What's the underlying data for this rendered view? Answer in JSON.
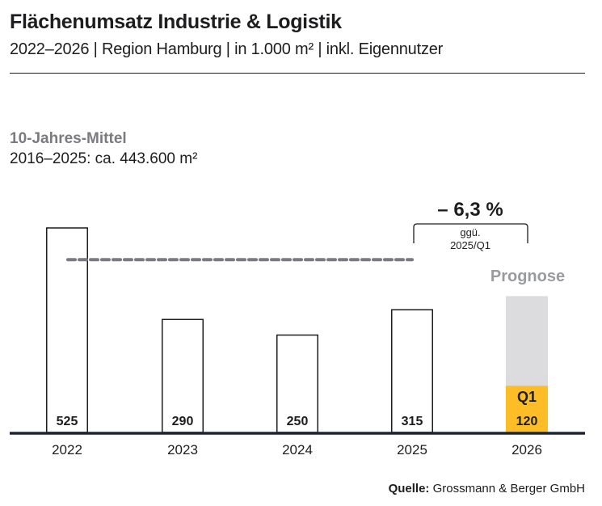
{
  "header": {
    "title": "Flächenumsatz Industrie & Logistik",
    "subtitle": "2022–2026 | Region Hamburg | in 1.000 m² | inkl. Eigennutzer"
  },
  "average": {
    "title": "10-Jahres-Mittel",
    "value_text": "2016–2025: ca. 443.600 m²"
  },
  "annotation": {
    "delta": "– 6,3 %",
    "note_line1": "ggü.",
    "note_line2": "2025/Q1",
    "prognose": "Prognose",
    "q1": "Q1"
  },
  "source": {
    "label": "Quelle:",
    "text": "Grossmann & Berger GmbH"
  },
  "colors": {
    "bar_outline": "#1d1d1f",
    "baseline": "#1d2630",
    "average_line": "#7a7b80",
    "forecast": "#dcdcde",
    "q1_actual": "#fdbd26"
  },
  "chart_data": {
    "type": "bar",
    "title": "Flächenumsatz Industrie & Logistik",
    "subtitle": "2022–2026 | Region Hamburg | in 1.000 m² | inkl. Eigennutzer",
    "xlabel": "",
    "ylabel": "in 1.000 m²",
    "categories": [
      "2022",
      "2023",
      "2024",
      "2025",
      "2026"
    ],
    "values": [
      525,
      290,
      250,
      315,
      120
    ],
    "value_labels": [
      "525",
      "290",
      "250",
      "315",
      "120"
    ],
    "series": [
      {
        "name": "Flächenumsatz",
        "values": [
          525,
          290,
          250,
          315,
          null
        ]
      },
      {
        "name": "2026 Q1",
        "values": [
          null,
          null,
          null,
          null,
          120
        ]
      },
      {
        "name": "Prognose 2026",
        "values": [
          null,
          null,
          null,
          null,
          350
        ]
      }
    ],
    "reference_line": {
      "label": "10-Jahres-Mittel 2016–2025",
      "value": 443.6
    },
    "annotation": {
      "text": "– 6,3 % ggü. 2025/Q1",
      "category": "2026"
    },
    "ylim": [
      0,
      525
    ],
    "grid": false,
    "legend": "none"
  }
}
